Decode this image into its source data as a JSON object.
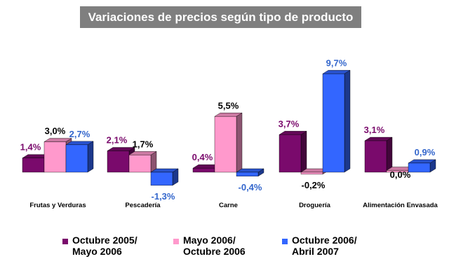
{
  "chart_data": {
    "type": "bar",
    "title": "Variaciones de precios según tipo de producto",
    "categories": [
      "Frutas y Verduras",
      "Pescadería",
      "Carne",
      "Droguería",
      "Alimentación Envasada"
    ],
    "series": [
      {
        "name_lines": [
          "Octubre 2005/",
          "Mayo 2006"
        ],
        "color": "#7a0a6c",
        "label_color": "#7a0a6c",
        "values": [
          1.4,
          2.1,
          0.4,
          3.7,
          3.1
        ],
        "labels": [
          "1,4%",
          "2,1%",
          "0,4%",
          "3,7%",
          "3,1%"
        ]
      },
      {
        "name_lines": [
          "Mayo 2006/",
          "Octubre 2006"
        ],
        "color": "#ff99cc",
        "label_color": "#000000",
        "values": [
          3.0,
          1.7,
          5.5,
          -0.2,
          0.0
        ],
        "labels": [
          "3,0%",
          "1,7%",
          "5,5%",
          "-0,2%",
          "0,0%"
        ]
      },
      {
        "name_lines": [
          "Octubre 2006/",
          "Abril 2007"
        ],
        "color": "#3366ff",
        "label_color": "#3366cc",
        "values": [
          2.7,
          -1.3,
          -0.4,
          9.7,
          0.9
        ],
        "labels": [
          "2,7%",
          "-1,3%",
          "-0,4%",
          "9,7%",
          "0,9%"
        ]
      }
    ],
    "legend_position": "bottom",
    "grid": false
  }
}
